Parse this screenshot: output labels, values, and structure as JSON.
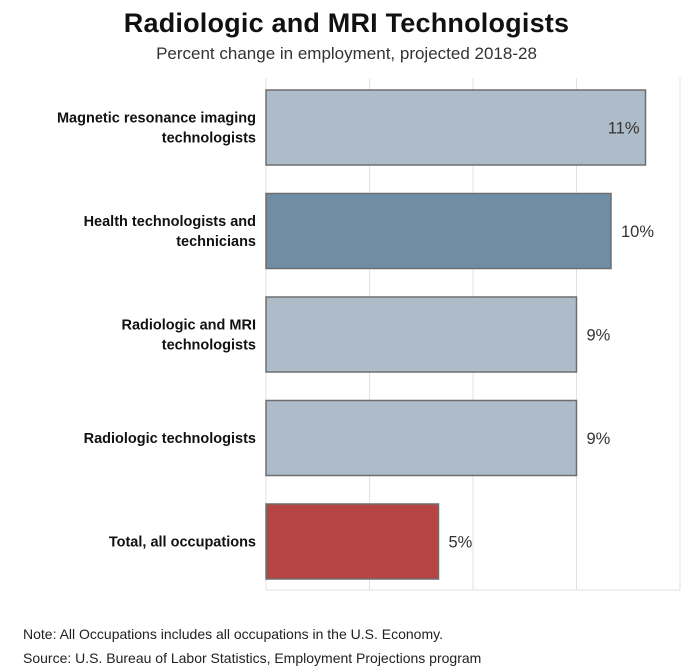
{
  "title": "Radiologic and MRI Technologists",
  "subtitle": "Percent change in employment, projected 2018-28",
  "note": "Note: All Occupations includes all occupations in the U.S. Economy.",
  "source": "Source: U.S. Bureau of Labor Statistics, Employment Projections program",
  "colors": {
    "default_bar": "#adbcc8",
    "highlight_bar": "#6f8ea6",
    "total_bar": "#b54443",
    "bar_border": "#6e6e6e",
    "grid": "#e2e2e2"
  },
  "chart_data": {
    "type": "bar",
    "orientation": "horizontal",
    "title": "Radiologic and MRI Technologists",
    "subtitle": "Percent change in employment, projected 2018-28",
    "categories": [
      [
        "Magnetic resonance imaging",
        "technologists"
      ],
      [
        "Health technologists and",
        "technicians"
      ],
      [
        "Radiologic and MRI",
        "technologists"
      ],
      [
        "Radiologic technologists"
      ],
      [
        "Total, all occupations"
      ]
    ],
    "values": [
      11,
      10,
      9,
      9,
      5
    ],
    "value_labels": [
      "11%",
      "10%",
      "9%",
      "9%",
      "5%"
    ],
    "bar_styles": [
      "default",
      "highlight",
      "default",
      "default",
      "total"
    ],
    "xlim": [
      0,
      12
    ],
    "grid": true,
    "xlabel": "",
    "ylabel": ""
  }
}
